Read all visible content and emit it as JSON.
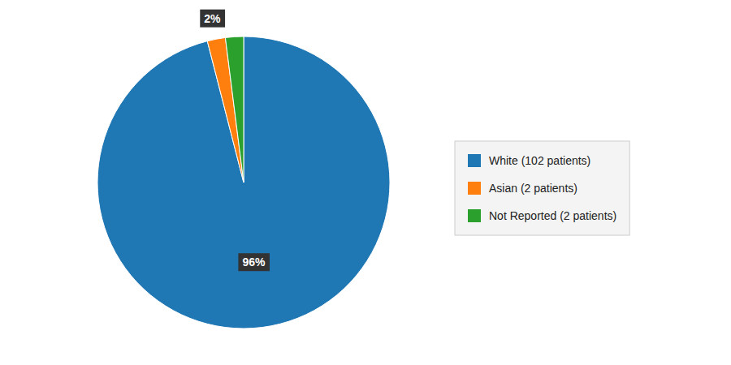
{
  "chart_data": {
    "type": "pie",
    "categories": [
      "White (102 patients)",
      "Asian (2 patients)",
      "Not Reported (2 patients)"
    ],
    "values": [
      96,
      2,
      2
    ],
    "data_labels": true,
    "value_labels": [
      "96%",
      "2%",
      null
    ],
    "legend": "right"
  }
}
